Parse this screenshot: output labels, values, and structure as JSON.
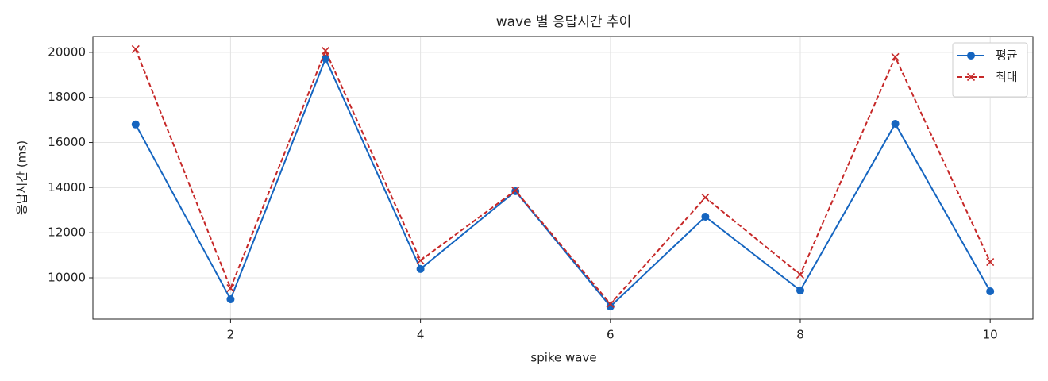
{
  "chart_data": {
    "type": "line",
    "title": "wave 별 응답시간 추이",
    "x_label": "spike wave",
    "y_label": "응답시간 (ms)",
    "x": [
      1,
      2,
      3,
      4,
      5,
      6,
      7,
      8,
      9,
      10
    ],
    "series": [
      {
        "name": "평균",
        "color": "#1565c0",
        "marker": "o",
        "linestyle": "solid",
        "values": [
          16800,
          9050,
          19720,
          10390,
          13840,
          8730,
          12710,
          9440,
          16830,
          9400
        ]
      },
      {
        "name": "최대",
        "color": "#c62828",
        "marker": "x",
        "linestyle": "dashed",
        "values": [
          20140,
          9540,
          20070,
          10770,
          13870,
          8840,
          13560,
          10140,
          19790,
          10700
        ]
      }
    ],
    "xlim": [
      0.55,
      10.45
    ],
    "ylim": [
      8170,
      20700
    ],
    "xticks": [
      2,
      4,
      6,
      8,
      10
    ],
    "yticks": [
      10000,
      12000,
      14000,
      16000,
      18000,
      20000
    ],
    "grid": true,
    "legend": "upper right"
  }
}
